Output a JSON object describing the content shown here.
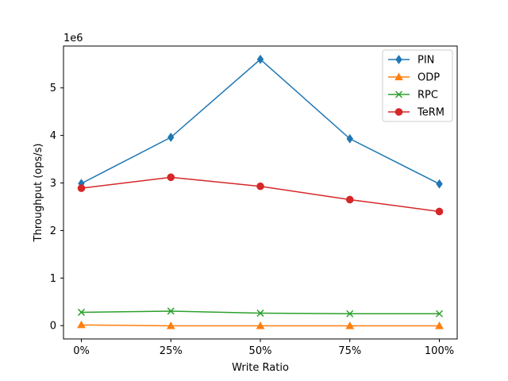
{
  "chart_data": {
    "type": "line",
    "categories": [
      "0%",
      "25%",
      "50%",
      "75%",
      "100%"
    ],
    "xlabel": "Write Ratio",
    "ylabel": "Throughput (ops/s)",
    "y_offset_label": "1e6",
    "ylim": [
      -280000,
      5880000
    ],
    "y_ticks": [
      0,
      1000000,
      2000000,
      3000000,
      4000000,
      5000000
    ],
    "y_tick_labels": [
      "0",
      "1",
      "2",
      "3",
      "4",
      "5"
    ],
    "grid": false,
    "legend_position": "top-right",
    "series": [
      {
        "name": "PIN",
        "marker": "diamond",
        "color": "#1f77b4",
        "values": [
          2990000,
          3960000,
          5600000,
          3930000,
          2980000
        ]
      },
      {
        "name": "ODP",
        "marker": "triangle",
        "color": "#ff7f0e",
        "values": [
          15000,
          -5000,
          -5000,
          -5000,
          -5000
        ]
      },
      {
        "name": "RPC",
        "marker": "x",
        "color": "#2ca02c",
        "values": [
          280000,
          305000,
          262000,
          250000,
          250000
        ]
      },
      {
        "name": "TeRM",
        "marker": "circle",
        "color": "#d62728",
        "values": [
          2890000,
          3120000,
          2930000,
          2650000,
          2400000
        ]
      }
    ]
  }
}
